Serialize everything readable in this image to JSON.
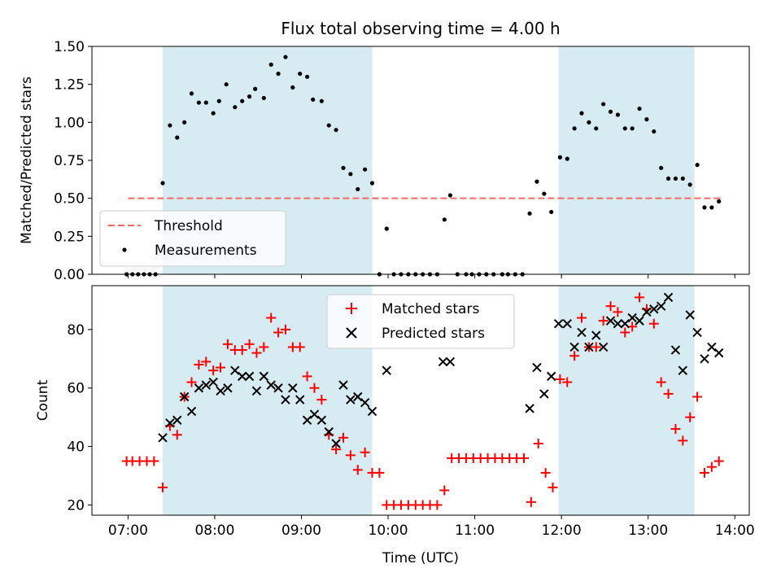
{
  "chart_data": [
    {
      "type": "scatter",
      "title": "Flux total observing time = 4.00 h",
      "xlabel": "",
      "ylabel": "Matched/Predicted stars",
      "x_unit": "time (UTC)",
      "xlim": [
        "06:35",
        "14:10"
      ],
      "ylim": [
        0,
        1.5
      ],
      "x_ticks": [
        "07:00",
        "08:00",
        "09:00",
        "10:00",
        "11:00",
        "12:00",
        "13:00",
        "14:00"
      ],
      "y_ticks": [
        "0.00",
        "0.25",
        "0.50",
        "0.75",
        "1.00",
        "1.25",
        "1.50"
      ],
      "shaded_intervals": [
        [
          "07:24",
          "09:49"
        ],
        [
          "11:58",
          "13:32"
        ]
      ],
      "shade_color": "#add8e6",
      "threshold": {
        "name": "Threshold",
        "value": 0.5,
        "x_range": [
          "07:00",
          "13:50"
        ],
        "color": "#ff6666",
        "style": "dashed"
      },
      "legend": {
        "position": "lower-left",
        "entries": [
          "Threshold",
          "Measurements"
        ]
      },
      "series": [
        {
          "name": "Measurements",
          "marker": "dot",
          "color": "#000000",
          "x": [
            "06:59",
            "07:03",
            "07:07",
            "07:11",
            "07:15",
            "07:19",
            "07:24",
            "07:29",
            "07:34",
            "07:39",
            "07:44",
            "07:49",
            "07:54",
            "07:59",
            "08:03",
            "08:08",
            "08:14",
            "08:19",
            "08:24",
            "08:28",
            "08:34",
            "08:39",
            "08:44",
            "08:49",
            "08:54",
            "08:59",
            "09:04",
            "09:08",
            "09:14",
            "09:19",
            "09:24",
            "09:29",
            "09:34",
            "09:39",
            "09:44",
            "09:49",
            "09:54",
            "09:59",
            "10:04",
            "10:09",
            "10:14",
            "10:19",
            "10:24",
            "10:29",
            "10:34",
            "10:39",
            "10:43",
            "10:48",
            "10:54",
            "10:58",
            "11:03",
            "11:08",
            "11:13",
            "11:19",
            "11:23",
            "11:28",
            "11:33",
            "11:38",
            "11:43",
            "11:48",
            "11:53",
            "11:59",
            "12:04",
            "12:09",
            "12:14",
            "12:19",
            "12:24",
            "12:29",
            "12:34",
            "12:39",
            "12:44",
            "12:49",
            "12:54",
            "12:59",
            "13:04",
            "13:09",
            "13:14",
            "13:19",
            "13:24",
            "13:29",
            "13:34",
            "13:39",
            "13:44",
            "13:49"
          ],
          "y": [
            0,
            0,
            0,
            0,
            0,
            0,
            0.6,
            0.98,
            0.9,
            1.0,
            1.19,
            1.13,
            1.13,
            1.06,
            1.14,
            1.25,
            1.1,
            1.14,
            1.17,
            1.22,
            1.16,
            1.38,
            1.32,
            1.43,
            1.23,
            1.32,
            1.3,
            1.15,
            1.14,
            0.98,
            0.95,
            0.7,
            0.66,
            0.56,
            0.69,
            0.6,
            0,
            0.3,
            0,
            0,
            0,
            0,
            0,
            0,
            0,
            0.36,
            0.52,
            0,
            0,
            0,
            0,
            0,
            0,
            0,
            0,
            0,
            0,
            0.4,
            0.61,
            0.53,
            0.41,
            0.77,
            0.76,
            0.96,
            1.06,
            1.0,
            0.96,
            1.12,
            1.07,
            1.05,
            0.96,
            0.96,
            1.09,
            1.02,
            0.94,
            0.7,
            0.63,
            0.63,
            0.63,
            0.59,
            0.72,
            0.44,
            0.44,
            0.48
          ]
        }
      ]
    },
    {
      "type": "scatter",
      "title": "",
      "xlabel": "Time (UTC)",
      "ylabel": "Count",
      "x_unit": "time (UTC)",
      "xlim": [
        "06:35",
        "14:10"
      ],
      "ylim": [
        16.5,
        95
      ],
      "x_ticks": [
        "07:00",
        "08:00",
        "09:00",
        "10:00",
        "11:00",
        "12:00",
        "13:00",
        "14:00"
      ],
      "y_ticks": [
        "20",
        "40",
        "60",
        "80"
      ],
      "shaded_intervals": [
        [
          "07:24",
          "09:49"
        ],
        [
          "11:58",
          "13:32"
        ]
      ],
      "shade_color": "#add8e6",
      "legend": {
        "position": "upper-center",
        "entries": [
          "Matched stars",
          "Predicted stars"
        ]
      },
      "series": [
        {
          "name": "Matched stars",
          "marker": "plus",
          "color": "#ff0000",
          "x": [
            "06:59",
            "07:03",
            "07:08",
            "07:13",
            "07:18",
            "07:24",
            "07:29",
            "07:34",
            "07:39",
            "07:44",
            "07:49",
            "07:54",
            "07:59",
            "08:04",
            "08:09",
            "08:14",
            "08:19",
            "08:24",
            "08:29",
            "08:34",
            "08:39",
            "08:44",
            "08:49",
            "08:54",
            "08:59",
            "09:04",
            "09:09",
            "09:14",
            "09:19",
            "09:24",
            "09:29",
            "09:34",
            "09:39",
            "09:44",
            "09:49",
            "09:54",
            "09:59",
            "10:04",
            "10:09",
            "10:14",
            "10:19",
            "10:24",
            "10:29",
            "10:34",
            "10:39",
            "10:44",
            "10:49",
            "10:54",
            "10:59",
            "11:04",
            "11:09",
            "11:14",
            "11:19",
            "11:24",
            "11:29",
            "11:34",
            "11:39",
            "11:44",
            "11:49",
            "11:54",
            "11:59",
            "12:04",
            "12:09",
            "12:14",
            "12:19",
            "12:24",
            "12:29",
            "12:34",
            "12:39",
            "12:44",
            "12:49",
            "12:54",
            "12:59",
            "13:04",
            "13:09",
            "13:14",
            "13:19",
            "13:24",
            "13:29",
            "13:34",
            "13:39",
            "13:44",
            "13:49"
          ],
          "y": [
            35,
            35,
            35,
            35,
            35,
            26,
            47,
            44,
            57,
            62,
            68,
            69,
            66,
            67,
            75,
            73,
            73,
            75,
            72,
            74,
            84,
            79,
            80,
            74,
            74,
            64,
            60,
            56,
            44,
            39,
            43,
            37,
            32,
            38,
            31,
            31,
            20,
            20,
            20,
            20,
            20,
            20,
            20,
            20,
            25,
            36,
            36,
            36,
            36,
            36,
            36,
            36,
            36,
            36,
            36,
            36,
            21,
            41,
            31,
            26,
            63,
            62,
            71,
            84,
            74,
            74,
            83,
            88,
            86,
            79,
            81,
            91,
            87,
            82,
            62,
            58,
            46,
            42,
            50,
            57,
            31,
            33,
            35
          ]
        },
        {
          "name": "Predicted stars",
          "marker": "x",
          "color": "#000000",
          "x": [
            "07:24",
            "07:29",
            "07:34",
            "07:39",
            "07:44",
            "07:49",
            "07:54",
            "07:59",
            "08:04",
            "08:09",
            "08:14",
            "08:19",
            "08:24",
            "08:29",
            "08:34",
            "08:39",
            "08:44",
            "08:49",
            "08:54",
            "08:59",
            "09:04",
            "09:09",
            "09:14",
            "09:19",
            "09:24",
            "09:29",
            "09:34",
            "09:39",
            "09:44",
            "09:49",
            "09:59",
            "10:38",
            "10:43",
            "11:38",
            "11:43",
            "11:48",
            "11:53",
            "11:58",
            "12:04",
            "12:09",
            "12:14",
            "12:19",
            "12:24",
            "12:29",
            "12:34",
            "12:39",
            "12:44",
            "12:49",
            "12:54",
            "12:59",
            "13:04",
            "13:09",
            "13:14",
            "13:19",
            "13:24",
            "13:29",
            "13:34",
            "13:39",
            "13:44",
            "13:49"
          ],
          "y": [
            43,
            48,
            49,
            57,
            52,
            60,
            61,
            62,
            59,
            60,
            66,
            64,
            64,
            59,
            64,
            61,
            60,
            56,
            60,
            56,
            49,
            51,
            49,
            45,
            41,
            61,
            56,
            57,
            55,
            52,
            66,
            69,
            69,
            53,
            67,
            58,
            64,
            82,
            82,
            74,
            79,
            74,
            78,
            74,
            83,
            82,
            82,
            84,
            83,
            86,
            87,
            88,
            91,
            73,
            66,
            85,
            79,
            70,
            74,
            72
          ]
        }
      ]
    }
  ]
}
